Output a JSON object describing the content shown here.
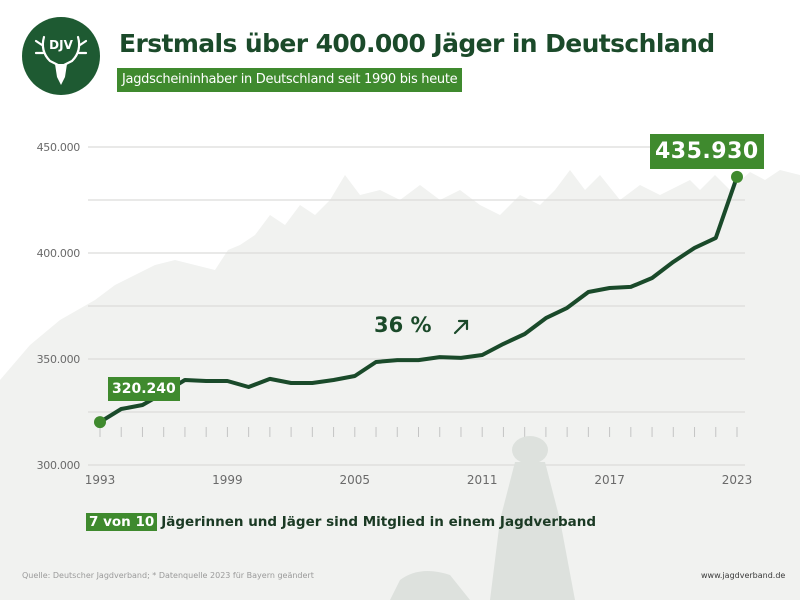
{
  "header": {
    "logo_text": "DJV",
    "title": "Erstmals über 400.000 Jäger in Deutschland",
    "subtitle": "Jagdscheininhaber in Deutschland seit 1990 bis heute"
  },
  "colors": {
    "dark_green": "#1b4a2a",
    "line_green": "#1a4a2a",
    "accent_green": "#3f8a2e",
    "logo_green": "#1e5a32",
    "background": "#f1f2f0",
    "gridline": "#dcdcda"
  },
  "annotations": {
    "growth_percent": "36 %",
    "growth_icon": "arrow-up-right-icon",
    "first_value_label": "320.240",
    "last_value_label": "435.930"
  },
  "footer": {
    "members_highlight": "7 von 10",
    "members_text": "Jägerinnen und Jäger sind Mitglied in einem Jagdverband",
    "source": "Quelle: Deutscher Jagdverband; * Datenquelle 2023 für Bayern geändert",
    "website": "www.jagdverband.de"
  },
  "chart_data": {
    "type": "line",
    "title": "Erstmals über 400.000 Jäger in Deutschland",
    "subtitle": "Jagdscheininhaber in Deutschland seit 1990 bis heute",
    "xlabel": "",
    "ylabel": "",
    "xlim": [
      1993,
      2023
    ],
    "ylim": [
      300000,
      450000
    ],
    "grid": true,
    "legend": "none",
    "y_ticks": [
      {
        "value": 300000,
        "label": "300.000"
      },
      {
        "value": 350000,
        "label": "350.000"
      },
      {
        "value": 400000,
        "label": "400.000"
      },
      {
        "value": 450000,
        "label": "450.000"
      }
    ],
    "y_minor_gridlines": [
      325000,
      375000,
      425000
    ],
    "x_ticks": [
      {
        "value": 1993,
        "label": "1993"
      },
      {
        "value": 1999,
        "label": "1999"
      },
      {
        "value": 2005,
        "label": "2005"
      },
      {
        "value": 2011,
        "label": "2011"
      },
      {
        "value": 2017,
        "label": "2017"
      },
      {
        "value": 2023,
        "label": "2023"
      }
    ],
    "series": [
      {
        "name": "Jagdscheininhaber",
        "x": [
          1993,
          1994,
          1995,
          1996,
          1997,
          1998,
          1999,
          2000,
          2001,
          2002,
          2003,
          2004,
          2005,
          2006,
          2007,
          2008,
          2009,
          2010,
          2011,
          2012,
          2013,
          2014,
          2015,
          2016,
          2017,
          2018,
          2019,
          2020,
          2021,
          2022,
          2023
        ],
        "values": [
          320240,
          326400,
          328300,
          334000,
          340100,
          339600,
          339600,
          336800,
          340600,
          338700,
          338700,
          340100,
          342000,
          348600,
          349500,
          349500,
          350900,
          350500,
          351900,
          357100,
          361800,
          369300,
          374100,
          381600,
          383500,
          384000,
          388200,
          395800,
          402400,
          407100,
          435930
        ]
      }
    ],
    "annotations": [
      {
        "x": 1993,
        "text": "320.240"
      },
      {
        "x": 2023,
        "text": "435.930"
      },
      {
        "text": "36 % ↗"
      }
    ]
  }
}
